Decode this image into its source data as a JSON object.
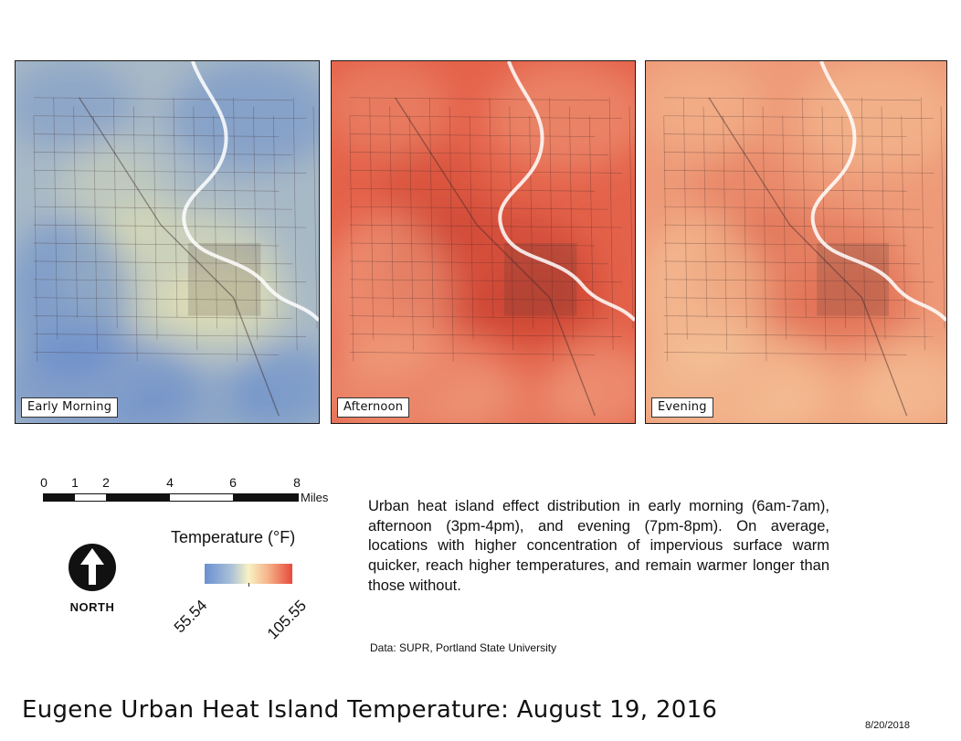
{
  "panels": [
    {
      "label": "Early Morning",
      "base": "#a8b9c6",
      "warm": "#e8e4b2",
      "cool": "#5f86cc"
    },
    {
      "label": "Afternoon",
      "base": "#e4624a",
      "warm": "#c9402e",
      "cool": "#f2a886"
    },
    {
      "label": "Evening",
      "base": "#ee9a78",
      "warm": "#df6a4e",
      "cool": "#f6ca9e"
    }
  ],
  "scale_bar": {
    "ticks": [
      "0",
      "1",
      "2",
      "4",
      "6",
      "8"
    ],
    "units": "Miles"
  },
  "north_arrow": {
    "label": "NORTH"
  },
  "legend": {
    "title": "Temperature (°F)",
    "min": "55.54",
    "max": "105.55"
  },
  "description": "Urban heat island effect distribution in early morning (6am-7am), afternoon (3pm-4pm), and evening (7pm-8pm). On average, locations with higher concentration of impervious surface warm quicker, reach higher temperatures, and remain warmer longer than those without.",
  "credit": "Data: SUPR, Portland State University",
  "title": "Eugene Urban Heat Island Temperature: August 19, 2016",
  "date": "8/20/2018"
}
